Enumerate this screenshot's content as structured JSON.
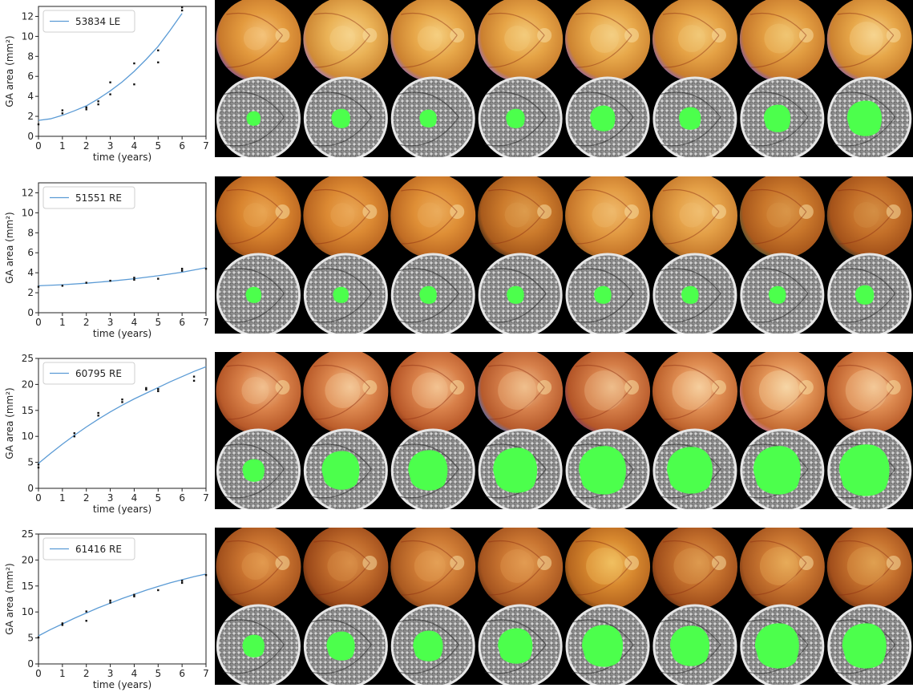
{
  "chart_data": [
    {
      "type": "scatter",
      "legend": "53834 LE",
      "legend_position": "top-left",
      "xlabel": "time (years)",
      "ylabel": "GA area (mm²)",
      "xlim": [
        0,
        7
      ],
      "ylim": [
        0,
        13
      ],
      "xticks": [
        0,
        1,
        2,
        3,
        4,
        5,
        6,
        7
      ],
      "yticks": [
        0,
        2,
        4,
        6,
        8,
        10,
        12
      ],
      "points": [
        [
          0,
          1.2
        ],
        [
          1,
          2.3
        ],
        [
          1,
          2.6
        ],
        [
          2,
          2.7
        ],
        [
          2,
          2.9
        ],
        [
          2.5,
          3.2
        ],
        [
          2.5,
          3.5
        ],
        [
          3,
          4.2
        ],
        [
          3,
          5.4
        ],
        [
          4,
          5.2
        ],
        [
          4,
          7.3
        ],
        [
          5,
          7.4
        ],
        [
          5,
          8.6
        ],
        [
          6,
          12.6
        ],
        [
          6,
          12.9
        ]
      ],
      "fit": [
        [
          0,
          1.6
        ],
        [
          0.5,
          1.75
        ],
        [
          1,
          2.1
        ],
        [
          1.5,
          2.55
        ],
        [
          2,
          3.05
        ],
        [
          2.5,
          3.75
        ],
        [
          3,
          4.55
        ],
        [
          3.5,
          5.45
        ],
        [
          4,
          6.5
        ],
        [
          4.5,
          7.7
        ],
        [
          5,
          9.0
        ],
        [
          5.5,
          10.6
        ],
        [
          6,
          12.3
        ]
      ],
      "series_color": "#5b9bd5"
    },
    {
      "type": "scatter",
      "legend": "51551 RE",
      "legend_position": "top-left",
      "xlabel": "time (years)",
      "ylabel": "GA area (mm²)",
      "xlim": [
        0,
        7
      ],
      "ylim": [
        0,
        13
      ],
      "xticks": [
        0,
        1,
        2,
        3,
        4,
        5,
        6,
        7
      ],
      "yticks": [
        0,
        2,
        4,
        6,
        8,
        10,
        12
      ],
      "points": [
        [
          0,
          2.6
        ],
        [
          1,
          2.7
        ],
        [
          2,
          3.0
        ],
        [
          3,
          3.2
        ],
        [
          4,
          3.3
        ],
        [
          4,
          3.5
        ],
        [
          5,
          3.4
        ],
        [
          6,
          4.2
        ],
        [
          6,
          4.4
        ],
        [
          7,
          4.4
        ]
      ],
      "fit": [
        [
          0,
          2.7
        ],
        [
          1,
          2.8
        ],
        [
          2,
          2.95
        ],
        [
          3,
          3.15
        ],
        [
          4,
          3.4
        ],
        [
          5,
          3.7
        ],
        [
          6,
          4.05
        ],
        [
          7,
          4.5
        ]
      ],
      "series_color": "#5b9bd5"
    },
    {
      "type": "scatter",
      "legend": "60795 RE",
      "legend_position": "top-left",
      "xlabel": "time (years)",
      "ylabel": "GA area (mm²)",
      "xlim": [
        0,
        7
      ],
      "ylim": [
        0,
        25
      ],
      "xticks": [
        0,
        1,
        2,
        3,
        4,
        5,
        6,
        7
      ],
      "yticks": [
        0,
        5,
        10,
        15,
        20,
        25
      ],
      "points": [
        [
          0,
          4.0
        ],
        [
          0,
          4.6
        ],
        [
          1.5,
          10.0
        ],
        [
          1.5,
          10.6
        ],
        [
          2.5,
          14.0
        ],
        [
          2.5,
          14.5
        ],
        [
          3.5,
          16.6
        ],
        [
          3.5,
          17.1
        ],
        [
          4.5,
          19.0
        ],
        [
          4.5,
          19.3
        ],
        [
          5,
          18.7
        ],
        [
          5,
          19.1
        ],
        [
          6.5,
          20.7
        ],
        [
          6.5,
          21.5
        ]
      ],
      "fit": [
        [
          0,
          4.8
        ],
        [
          0.5,
          6.7
        ],
        [
          1,
          8.5
        ],
        [
          1.5,
          10.2
        ],
        [
          2,
          11.8
        ],
        [
          2.5,
          13.3
        ],
        [
          3,
          14.7
        ],
        [
          3.5,
          16.0
        ],
        [
          4,
          17.2
        ],
        [
          4.5,
          18.3
        ],
        [
          5,
          19.4
        ],
        [
          5.5,
          20.5
        ],
        [
          6,
          21.5
        ],
        [
          6.5,
          22.5
        ],
        [
          7,
          23.4
        ]
      ],
      "series_color": "#5b9bd5"
    },
    {
      "type": "scatter",
      "legend": "61416 RE",
      "legend_position": "top-left",
      "xlabel": "time (years)",
      "ylabel": "GA area (mm²)",
      "xlim": [
        0,
        7
      ],
      "ylim": [
        0,
        25
      ],
      "xticks": [
        0,
        1,
        2,
        3,
        4,
        5,
        6,
        7
      ],
      "yticks": [
        0,
        5,
        10,
        15,
        20,
        25
      ],
      "points": [
        [
          0,
          5.1
        ],
        [
          1,
          7.5
        ],
        [
          1,
          7.8
        ],
        [
          2,
          8.3
        ],
        [
          2,
          10.1
        ],
        [
          3,
          11.8
        ],
        [
          3,
          12.2
        ],
        [
          4,
          13.0
        ],
        [
          4,
          13.3
        ],
        [
          5,
          14.2
        ],
        [
          6,
          15.6
        ],
        [
          6,
          16.0
        ],
        [
          7,
          17.1
        ]
      ],
      "fit": [
        [
          0,
          5.4
        ],
        [
          0.5,
          6.6
        ],
        [
          1,
          7.7
        ],
        [
          1.5,
          8.8
        ],
        [
          2,
          9.8
        ],
        [
          2.5,
          10.8
        ],
        [
          3,
          11.7
        ],
        [
          3.5,
          12.6
        ],
        [
          4,
          13.4
        ],
        [
          4.5,
          14.2
        ],
        [
          5,
          14.9
        ],
        [
          5.5,
          15.6
        ],
        [
          6,
          16.2
        ],
        [
          6.5,
          16.8
        ],
        [
          7,
          17.3
        ]
      ],
      "series_color": "#5b9bd5"
    }
  ],
  "image_strips": [
    {
      "fundus": [
        {
          "base": "#c8792b",
          "mid": "#e39a3e",
          "hi": "#f4c37a",
          "rim": "#7a4fb3"
        },
        {
          "base": "#cf8a36",
          "mid": "#eab256",
          "hi": "#f6d38c",
          "rim": "#a27bd1"
        },
        {
          "base": "#cc8230",
          "mid": "#e7a749",
          "hi": "#f5cf80",
          "rim": "#8f6bc6"
        },
        {
          "base": "#ca7f2f",
          "mid": "#e6a446",
          "hi": "#f3cb7c",
          "rim": "#9c76cf"
        },
        {
          "base": "#cd8431",
          "mid": "#e8a94b",
          "hi": "#f4cf83",
          "rim": "#8c5fb8"
        },
        {
          "base": "#c97e2e",
          "mid": "#e5a245",
          "hi": "#f2c978",
          "rim": "#8763bd"
        },
        {
          "base": "#c7792c",
          "mid": "#e29d41",
          "hi": "#f0c673",
          "rim": "#7b5bc2"
        },
        {
          "base": "#cc8230",
          "mid": "#e7a749",
          "hi": "#f6d590",
          "rim": "#8a63bb"
        }
      ],
      "lesion_radius": [
        9,
        12,
        11,
        12,
        16,
        14,
        17,
        22
      ]
    },
    {
      "fundus": [
        {
          "base": "#b8621f",
          "mid": "#d9852f",
          "hi": "#e9a553",
          "rim": "#8a4a1a"
        },
        {
          "base": "#bc6822",
          "mid": "#dc8a33",
          "hi": "#eaa858",
          "rim": "#8e4d1c"
        },
        {
          "base": "#c06c24",
          "mid": "#df8f36",
          "hi": "#ebac5c",
          "rim": "#925020"
        },
        {
          "base": "#a85a1c",
          "mid": "#cc7b2c",
          "hi": "#dd9c4d",
          "rim": "#3f2a18"
        },
        {
          "base": "#c6762a",
          "mid": "#e29a42",
          "hi": "#efb96c",
          "rim": "#8f5a24"
        },
        {
          "base": "#c87c2e",
          "mid": "#e4a047",
          "hi": "#f0be70",
          "rim": "#8f5d28"
        },
        {
          "base": "#a9581c",
          "mid": "#c9772b",
          "hi": "#d99649",
          "rim": "#4a5a3a"
        },
        {
          "base": "#a4521a",
          "mid": "#c47029",
          "hi": "#d48e44",
          "rim": "#3b3a2a"
        }
      ],
      "lesion_radius": [
        10,
        10,
        11,
        11,
        11,
        11,
        11,
        12
      ]
    },
    {
      "fundus": [
        {
          "base": "#b85a2a",
          "mid": "#d98149",
          "hi": "#f2c08f",
          "rim": "#8a3c1c"
        },
        {
          "base": "#bc5e2c",
          "mid": "#dc874e",
          "hi": "#f4c898",
          "rim": "#8e401e"
        },
        {
          "base": "#b9592a",
          "mid": "#d9814a",
          "hi": "#f3c391",
          "rim": "#8b3d1d"
        },
        {
          "base": "#b65a2c",
          "mid": "#d6804b",
          "hi": "#f0bf8d",
          "rim": "#4a74c8"
        },
        {
          "base": "#b45628",
          "mid": "#d47d47",
          "hi": "#efbe8b",
          "rim": "#7a3a60"
        },
        {
          "base": "#bf642e",
          "mid": "#df8d52",
          "hi": "#f6cf9e",
          "rim": "#8f4620"
        },
        {
          "base": "#c36a32",
          "mid": "#e39558",
          "hi": "#f7d6a6",
          "rim": "#c07ab0"
        },
        {
          "base": "#bd602d",
          "mid": "#dd8a50",
          "hi": "#f4c998",
          "rim": "#8d4420"
        }
      ],
      "lesion_radius": [
        14,
        24,
        25,
        28,
        30,
        29,
        30,
        32
      ]
    },
    {
      "fundus": [
        {
          "base": "#a4521d",
          "mid": "#c8722f",
          "hi": "#e29a4f",
          "rim": "#6a3314"
        },
        {
          "base": "#9a4819",
          "mid": "#bf6a2b",
          "hi": "#d98f49",
          "rim": "#5e2c11"
        },
        {
          "base": "#ab5a21",
          "mid": "#cd7a34",
          "hi": "#e4a056",
          "rim": "#6e3716"
        },
        {
          "base": "#a65520",
          "mid": "#c97531",
          "hi": "#e29c52",
          "rim": "#6a3415"
        },
        {
          "base": "#b6661f",
          "mid": "#d8892f",
          "hi": "#f1c060",
          "rim": "#6b3e12"
        },
        {
          "base": "#a04e1b",
          "mid": "#c4702d",
          "hi": "#de9a4f",
          "rim": "#633013"
        },
        {
          "base": "#a85720",
          "mid": "#cb7832",
          "hi": "#e7ac5a",
          "rim": "#6c3515"
        },
        {
          "base": "#a24f1c",
          "mid": "#c6722e",
          "hi": "#e0a051",
          "rim": "#653114"
        }
      ],
      "lesion_radius": [
        14,
        18,
        19,
        22,
        26,
        25,
        28,
        28
      ]
    }
  ],
  "colors": {
    "lesion": "#4cff4c",
    "fit_line": "#5b9bd5",
    "points": "#111111",
    "strip_background": "#000000"
  }
}
